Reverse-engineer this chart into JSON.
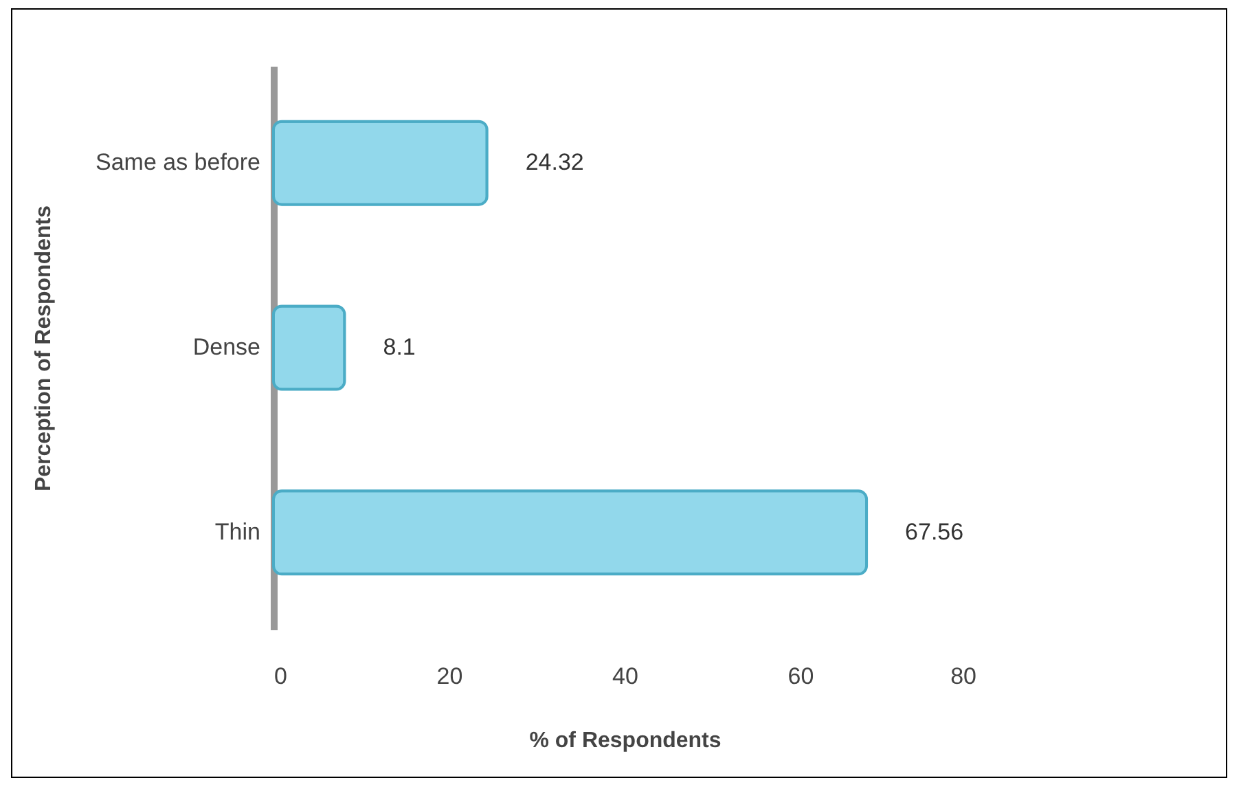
{
  "chart_data": {
    "type": "bar",
    "orientation": "horizontal",
    "xlabel": "%  of Respondents",
    "ylabel": "Perception of  Respondents",
    "categories": [
      "Same as before",
      "Dense",
      "Thin"
    ],
    "values": [
      24.32,
      8.1,
      67.56
    ],
    "color": "#92d8eb",
    "xlim": [
      0,
      80
    ],
    "xticks": [
      0,
      20,
      40,
      60,
      80
    ],
    "grid": false,
    "data_labels": true
  }
}
